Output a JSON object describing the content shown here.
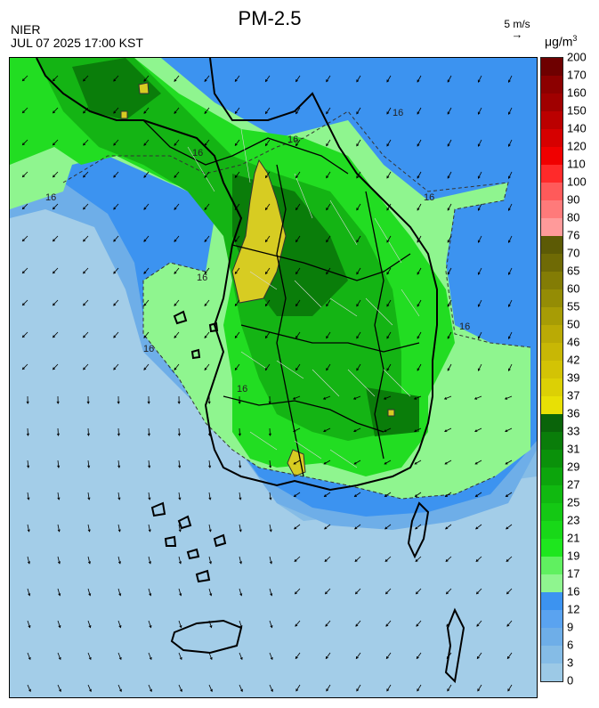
{
  "header": {
    "title": "PM-2.5",
    "agency": "NIER",
    "timestamp": "JUL 07 2025 17:00 KST",
    "wind_reference": "5 m/s",
    "unit": "μg/m",
    "unit_exponent": "3"
  },
  "map": {
    "contour_label": "16",
    "colors": {
      "sea_low": "#a3cde8",
      "sea_mid": "#6eaee6",
      "low_blue": "#3c93f0",
      "light_green": "#8ff58f",
      "green": "#22dd22",
      "mid_green": "#14b414",
      "dark_green": "#0a7d0a",
      "yellow": "#d7cc22",
      "coast": "#000000"
    }
  },
  "colorbar": {
    "levels": [
      {
        "label": "200",
        "color": "#6e0000"
      },
      {
        "label": "170",
        "color": "#8c0000"
      },
      {
        "label": "160",
        "color": "#a00000"
      },
      {
        "label": "150",
        "color": "#bb0000"
      },
      {
        "label": "140",
        "color": "#d60000"
      },
      {
        "label": "120",
        "color": "#f00000"
      },
      {
        "label": "110",
        "color": "#ff2a2a"
      },
      {
        "label": "100",
        "color": "#ff5a5a"
      },
      {
        "label": "90",
        "color": "#ff7a7a"
      },
      {
        "label": "80",
        "color": "#ff9a9a"
      },
      {
        "label": "76",
        "color": "#5c5a05"
      },
      {
        "label": "70",
        "color": "#6f6a05"
      },
      {
        "label": "65",
        "color": "#837c05"
      },
      {
        "label": "60",
        "color": "#948c05"
      },
      {
        "label": "55",
        "color": "#a79c05"
      },
      {
        "label": "50",
        "color": "#baaa05"
      },
      {
        "label": "46",
        "color": "#c8b705"
      },
      {
        "label": "42",
        "color": "#d3c305"
      },
      {
        "label": "39",
        "color": "#dcd005"
      },
      {
        "label": "37",
        "color": "#e8e005"
      },
      {
        "label": "36",
        "color": "#0a640a"
      },
      {
        "label": "33",
        "color": "#0a7d0a"
      },
      {
        "label": "31",
        "color": "#0a910a"
      },
      {
        "label": "29",
        "color": "#0ca50c"
      },
      {
        "label": "27",
        "color": "#10b910"
      },
      {
        "label": "25",
        "color": "#14c814"
      },
      {
        "label": "23",
        "color": "#18d818"
      },
      {
        "label": "21",
        "color": "#1ee61e"
      },
      {
        "label": "19",
        "color": "#60f060"
      },
      {
        "label": "17",
        "color": "#8ff58f"
      },
      {
        "label": "16",
        "color": "#3c93f0"
      },
      {
        "label": "12",
        "color": "#5aa3f0"
      },
      {
        "label": "9",
        "color": "#6eaee8"
      },
      {
        "label": "6",
        "color": "#85bce6"
      },
      {
        "label": "3",
        "color": "#9cc9e6"
      }
    ],
    "bottom_label": "0"
  }
}
